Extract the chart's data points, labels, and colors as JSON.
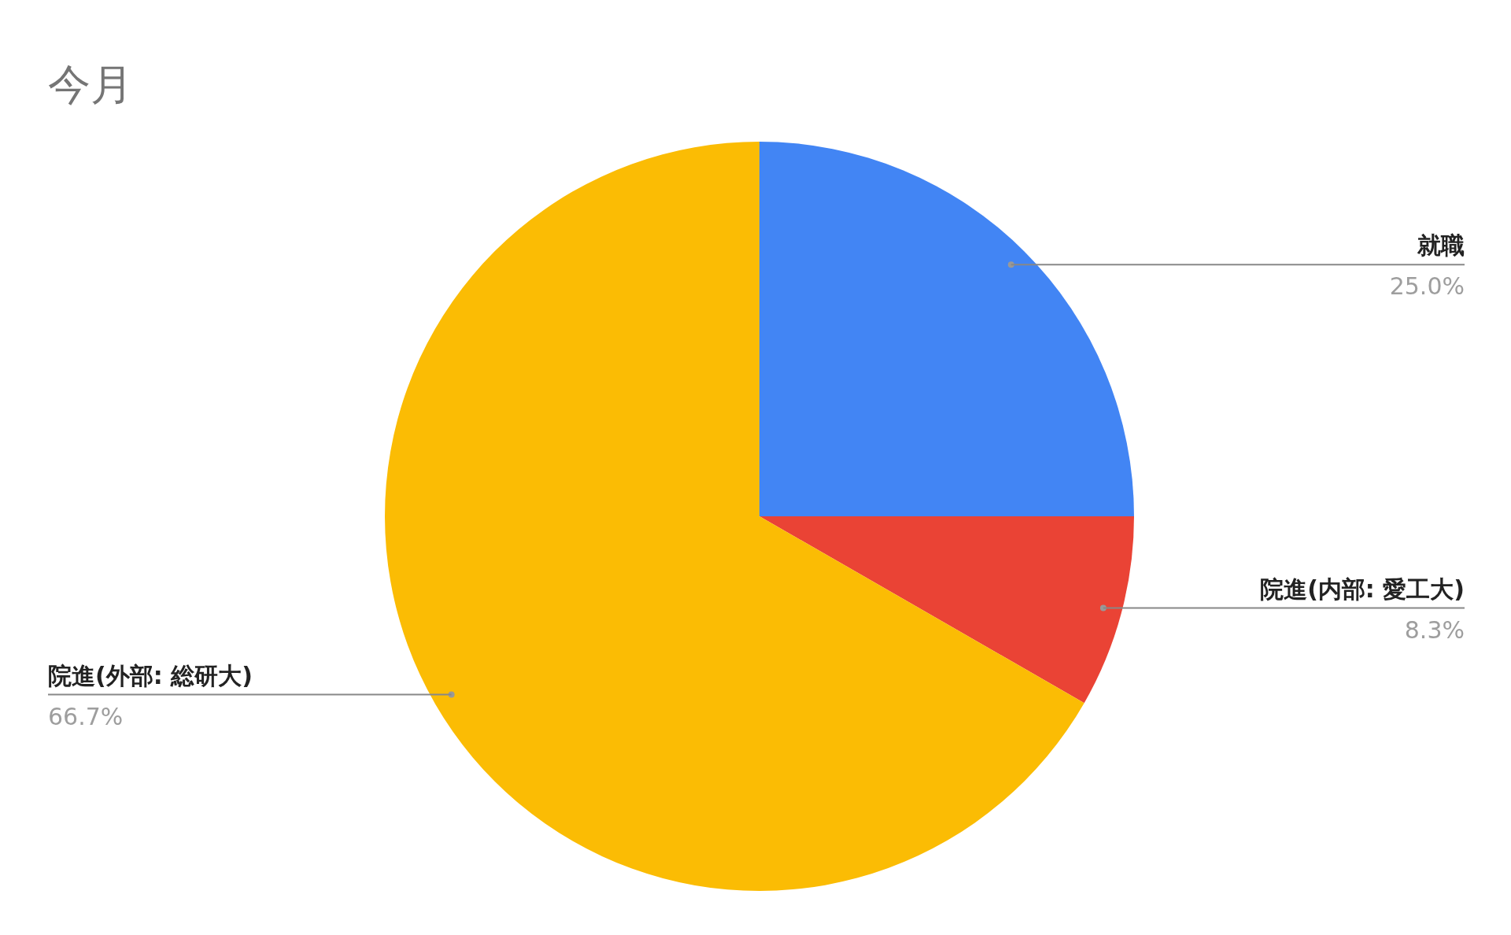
{
  "chart_data": {
    "type": "pie",
    "title": "今月",
    "categories": [
      "就職",
      "院進(内部: 愛工大)",
      "院進(外部: 総研大)"
    ],
    "values": [
      25.0,
      8.3,
      66.7
    ],
    "colors": [
      "#4285f4",
      "#ea4335",
      "#fbbc04"
    ],
    "value_labels": [
      "25.0%",
      "8.3%",
      "66.7%"
    ]
  }
}
